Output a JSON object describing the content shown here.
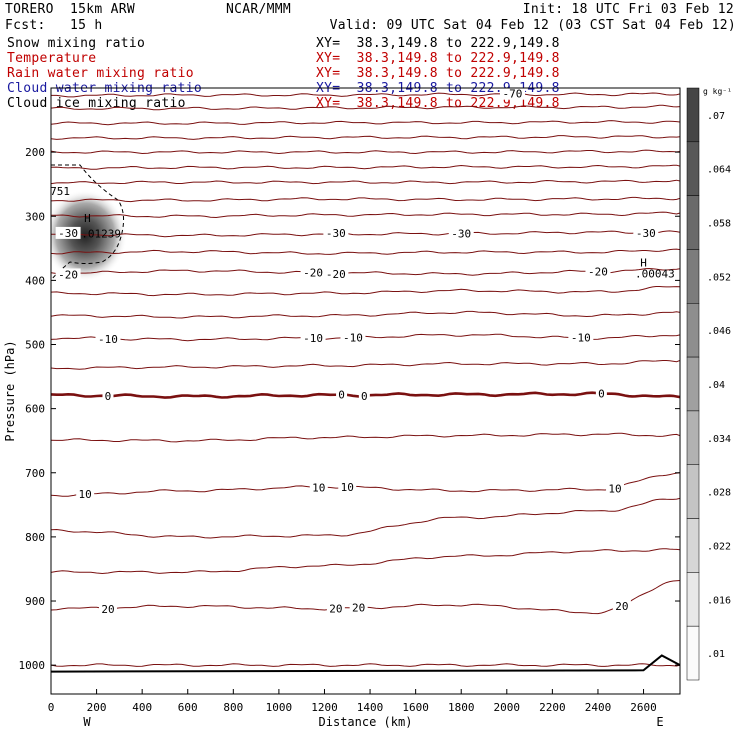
{
  "header": {
    "model": "TORERO  15km ARW",
    "center": "NCAR/MMM",
    "init": "Init: 18 UTC Fri 03 Feb 12",
    "fcst": "Fcst:   15 h",
    "valid": "Valid: 09 UTC Sat 04 Feb 12 (03 CST Sat 04 Feb 12)",
    "fields": [
      {
        "label": "Snow mixing ratio",
        "xy": "XY=  38.3,149.8 to 222.9,149.8",
        "color": "#000000"
      },
      {
        "label": "Temperature",
        "xy": "XY=  38.3,149.8 to 222.9,149.8",
        "color": "#c00000"
      },
      {
        "label": "Rain water mixing ratio",
        "xy": "XY=  38.3,149.8 to 222.9,149.8",
        "color": "#c00000"
      },
      {
        "label": "Cloud water mixing ratio",
        "xy": "XY=  38.3,149.8 to 222.9,149.8",
        "color": "#1a1aa0"
      },
      {
        "label": "Cloud ice mixing ratio",
        "xy": "XY=  38.3,149.8 to 222.9,149.8",
        "color": "#000000"
      }
    ]
  },
  "chart_data": {
    "type": "contour",
    "xlabel": "Distance (km)",
    "ylabel": "Pressure (hPa)",
    "x_ticks": [
      0,
      200,
      400,
      600,
      800,
      1000,
      1200,
      1400,
      1600,
      1800,
      2000,
      2200,
      2400,
      2600
    ],
    "xlim": [
      0,
      2760
    ],
    "y_ticks": [
      200,
      300,
      400,
      500,
      600,
      700,
      800,
      900,
      1000
    ],
    "ylim": [
      1045,
      100
    ],
    "left_end_label": "W",
    "right_end_label": "E",
    "colorbar": {
      "unit": "g kg⁻¹",
      "ticks": [
        ".07",
        ".064",
        ".058",
        ".052",
        ".046",
        ".04",
        ".034",
        ".028",
        ".022",
        ".016",
        ".01"
      ]
    },
    "temperature_contours": [
      {
        "x": [
          0,
          600,
          1200,
          1800,
          2400,
          2760
        ],
        "p": [
          1000,
          1000,
          1000,
          1000,
          1000,
          1000
        ],
        "label": ""
      },
      {
        "x": [
          0,
          600,
          1200,
          1800,
          2400,
          2760
        ],
        "p": [
          912,
          908,
          912,
          906,
          918,
          868
        ],
        "label": "20",
        "label_x": [
          260,
          1250,
          1360,
          2500
        ]
      },
      {
        "x": [
          0,
          600,
          1200,
          1800,
          2400,
          2760
        ],
        "p": [
          855,
          855,
          845,
          830,
          822,
          820
        ],
        "label": ""
      },
      {
        "x": [
          0,
          600,
          1200,
          1800,
          2400,
          2760
        ],
        "p": [
          790,
          800,
          798,
          770,
          760,
          740
        ],
        "label": ""
      },
      {
        "x": [
          0,
          600,
          1200,
          1800,
          2400,
          2760
        ],
        "p": [
          735,
          728,
          722,
          728,
          726,
          700
        ],
        "label": "10",
        "label_x": [
          160,
          1180,
          1310,
          2480
        ]
      },
      {
        "x": [
          0,
          600,
          1200,
          1800,
          2400,
          2760
        ],
        "p": [
          649,
          650,
          645,
          642,
          640,
          642
        ],
        "label": ""
      },
      {
        "x": [
          0,
          600,
          1200,
          1800,
          2400,
          2760
        ],
        "p": [
          579,
          581,
          579,
          578,
          577,
          582
        ],
        "label": "0",
        "label_x": [
          250,
          1280,
          1380,
          2420
        ],
        "bold": true
      },
      {
        "x": [
          0,
          600,
          1200,
          1800,
          2400,
          2760
        ],
        "p": [
          537,
          535,
          533,
          530,
          530,
          525
        ],
        "label": ""
      },
      {
        "x": [
          0,
          600,
          1200,
          1800,
          2400,
          2760
        ],
        "p": [
          490,
          492,
          490,
          485,
          490,
          485
        ],
        "label": "-10",
        "label_x": [
          260,
          1140,
          1320,
          2320
        ]
      },
      {
        "x": [
          0,
          600,
          1200,
          1800,
          2400,
          2760
        ],
        "p": [
          455,
          457,
          455,
          450,
          455,
          450
        ],
        "label": ""
      },
      {
        "x": [
          0,
          600,
          1200,
          1800,
          2400,
          2760
        ],
        "p": [
          420,
          422,
          420,
          416,
          418,
          410
        ],
        "label": ""
      },
      {
        "x": [
          0,
          600,
          1200,
          1800,
          2400,
          2760
        ],
        "p": [
          389,
          385,
          388,
          390,
          386,
          382
        ],
        "label": "-20",
        "label_x": [
          80,
          1160,
          1260,
          2400
        ]
      },
      {
        "x": [
          0,
          600,
          1200,
          1800,
          2400,
          2760
        ],
        "p": [
          357,
          355,
          358,
          356,
          356,
          352
        ],
        "label": ""
      },
      {
        "x": [
          0,
          600,
          1200,
          1800,
          2400,
          2760
        ],
        "p": [
          328,
          330,
          328,
          327,
          325,
          325
        ],
        "label": "-30",
        "label_x": [
          70,
          1240,
          1800,
          2610
        ]
      },
      {
        "x": [
          0,
          600,
          1200,
          1800,
          2400,
          2760
        ],
        "p": [
          299,
          300,
          298,
          297,
          297,
          295
        ],
        "label": ""
      },
      {
        "x": [
          0,
          600,
          1200,
          1800,
          2400,
          2760
        ],
        "p": [
          275,
          275,
          273,
          274,
          273,
          272
        ],
        "label": ""
      },
      {
        "x": [
          0,
          600,
          1200,
          1800,
          2400,
          2760
        ],
        "p": [
          248,
          247,
          247,
          247,
          246,
          245
        ],
        "label": ""
      },
      {
        "x": [
          0,
          600,
          1200,
          1800,
          2400,
          2760
        ],
        "p": [
          225,
          224,
          224,
          223,
          223,
          222
        ],
        "label": ""
      },
      {
        "x": [
          0,
          600,
          1200,
          1800,
          2400,
          2760
        ],
        "p": [
          200,
          200,
          200,
          200,
          199,
          199
        ],
        "label": ""
      },
      {
        "x": [
          0,
          600,
          1200,
          1800,
          2400,
          2760
        ],
        "p": [
          178,
          178,
          177,
          177,
          176,
          176
        ],
        "label": ""
      },
      {
        "x": [
          0,
          600,
          1200,
          1800,
          2400,
          2760
        ],
        "p": [
          155,
          155,
          154,
          154,
          153,
          153
        ],
        "label": ""
      },
      {
        "x": [
          0,
          600,
          1200,
          1800,
          2400,
          2760
        ],
        "p": [
          132,
          132,
          131,
          130,
          130,
          129
        ],
        "label": ""
      },
      {
        "x": [
          0,
          600,
          1200,
          1800,
          2400,
          2760
        ],
        "p": [
          112,
          111,
          111,
          110,
          110,
          109
        ],
        "label": "-70",
        "label_x": [
          2020
        ]
      }
    ],
    "annotations": [
      {
        "text": "H",
        "x": 160,
        "p": 303
      },
      {
        "text": ".01239",
        "x": 220,
        "p": 327
      },
      {
        "text": "H",
        "x": 2600,
        "p": 372
      },
      {
        "text": ".00043",
        "x": 2650,
        "p": 389
      },
      {
        "text": "751",
        "x": 40,
        "p": 261
      }
    ],
    "snow_max": {
      "x": 150,
      "p": 330,
      "value": 0.07
    },
    "terrain": {
      "x": [
        0,
        2600,
        2680,
        2760
      ],
      "p": [
        1010,
        1008,
        985,
        1000
      ]
    }
  }
}
